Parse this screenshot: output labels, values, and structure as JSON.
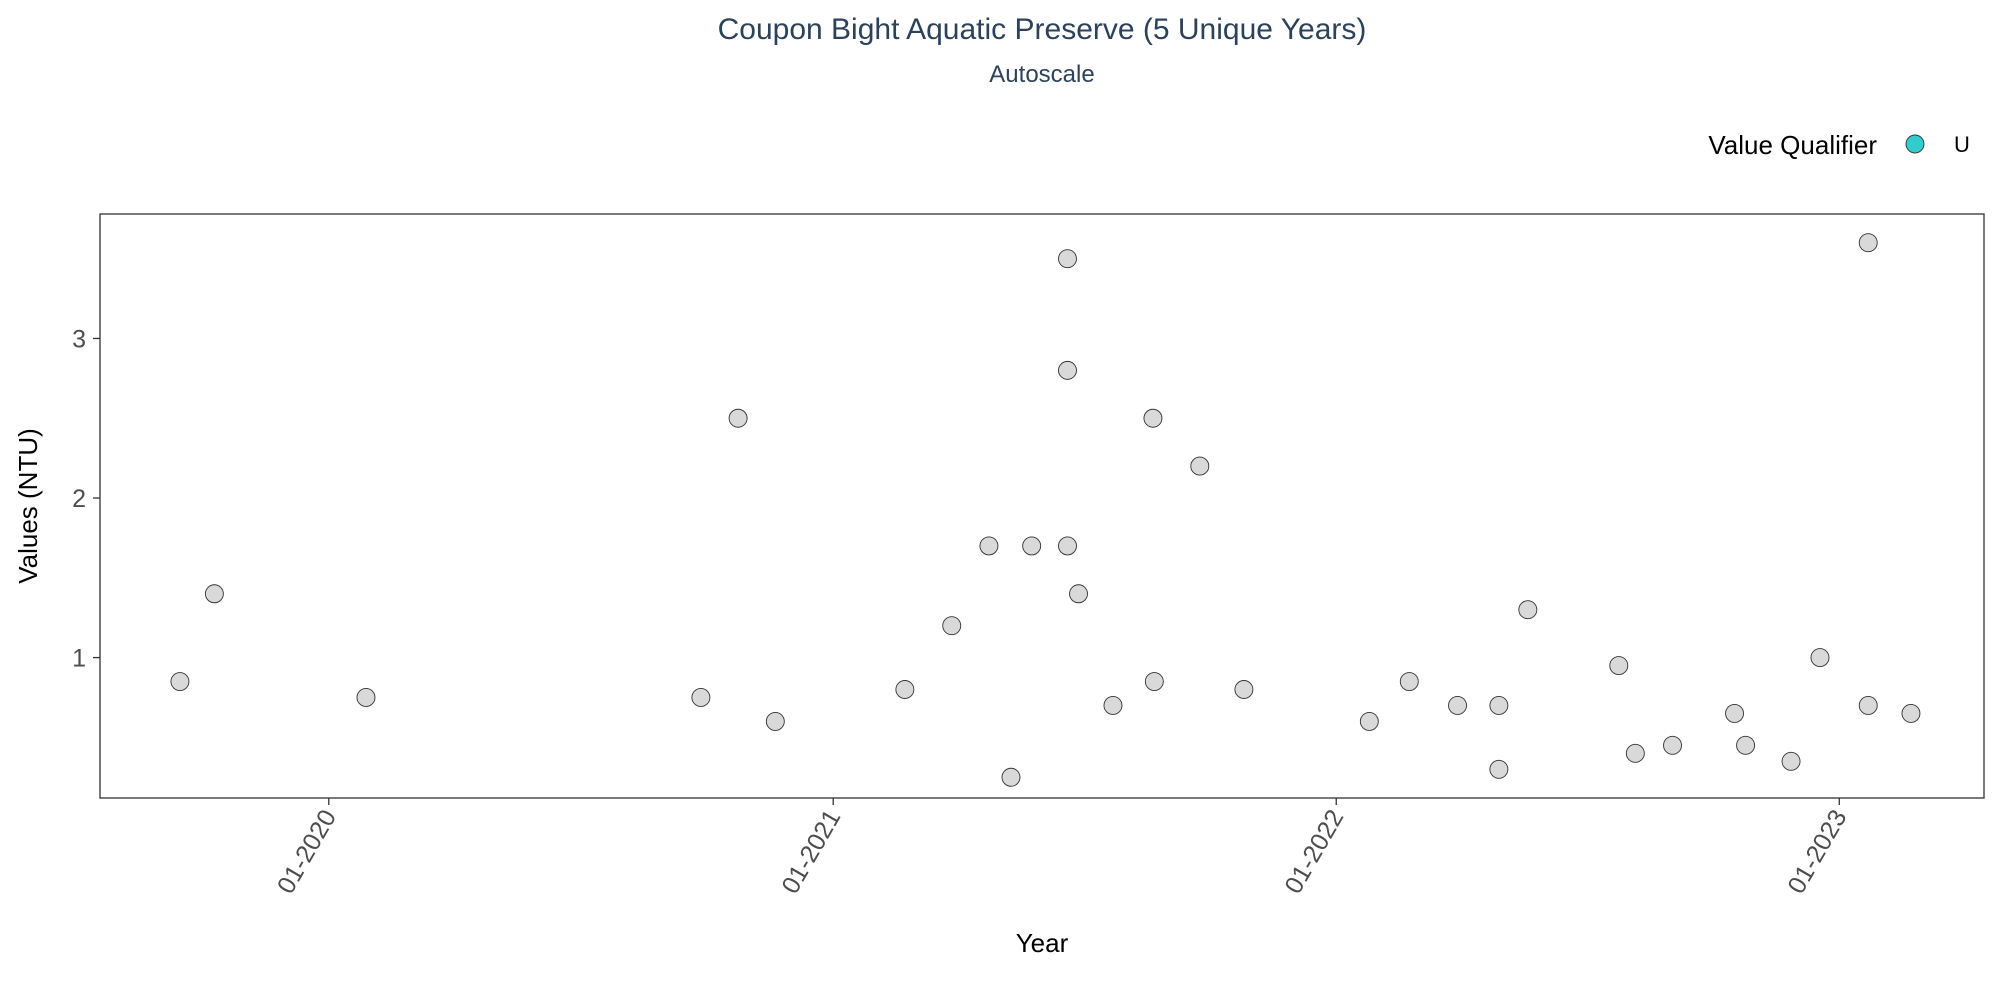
{
  "chart_data": {
    "type": "scatter",
    "title": "Coupon Bight Aquatic Preserve (5 Unique Years)",
    "subtitle": "Autoscale",
    "xlabel": "Year",
    "ylabel": "Values (NTU)",
    "xlim": [
      "2019-07-19",
      "2023-04-16"
    ],
    "ylim": [
      0.12,
      3.78
    ],
    "x_ticks": [
      {
        "date": "2020-01-01",
        "label": "01-2020"
      },
      {
        "date": "2021-01-01",
        "label": "01-2021"
      },
      {
        "date": "2022-01-01",
        "label": "01-2022"
      },
      {
        "date": "2023-01-01",
        "label": "01-2023"
      }
    ],
    "y_ticks": [
      {
        "value": 1,
        "label": "1"
      },
      {
        "value": 2,
        "label": "2"
      },
      {
        "value": 3,
        "label": "3"
      }
    ],
    "grid": false,
    "legend": {
      "title": "Value Qualifier",
      "position": "top-right",
      "entries": [
        {
          "label": "U",
          "color": "#33cccc"
        }
      ]
    },
    "point_color": "#d9d9d9",
    "point_stroke": "#333333",
    "points": [
      {
        "x": "2019-09-15",
        "y": 0.85
      },
      {
        "x": "2019-10-10",
        "y": 1.4
      },
      {
        "x": "2020-01-28",
        "y": 0.75
      },
      {
        "x": "2020-09-27",
        "y": 0.75
      },
      {
        "x": "2020-10-24",
        "y": 2.5
      },
      {
        "x": "2020-11-20",
        "y": 0.6
      },
      {
        "x": "2021-02-22",
        "y": 0.8
      },
      {
        "x": "2021-03-28",
        "y": 1.2
      },
      {
        "x": "2021-04-24",
        "y": 1.7
      },
      {
        "x": "2021-05-10",
        "y": 0.25
      },
      {
        "x": "2021-05-25",
        "y": 1.7
      },
      {
        "x": "2021-06-20",
        "y": 3.5
      },
      {
        "x": "2021-06-20",
        "y": 2.8
      },
      {
        "x": "2021-06-20",
        "y": 1.7
      },
      {
        "x": "2021-06-28",
        "y": 1.4
      },
      {
        "x": "2021-07-23",
        "y": 0.7
      },
      {
        "x": "2021-08-21",
        "y": 2.5
      },
      {
        "x": "2021-08-22",
        "y": 0.85
      },
      {
        "x": "2021-09-24",
        "y": 2.2
      },
      {
        "x": "2021-10-26",
        "y": 0.8
      },
      {
        "x": "2022-01-25",
        "y": 0.6
      },
      {
        "x": "2022-02-23",
        "y": 0.85
      },
      {
        "x": "2022-03-30",
        "y": 0.7
      },
      {
        "x": "2022-04-29",
        "y": 0.7
      },
      {
        "x": "2022-04-29",
        "y": 0.3
      },
      {
        "x": "2022-05-20",
        "y": 1.3
      },
      {
        "x": "2022-07-25",
        "y": 0.95
      },
      {
        "x": "2022-08-06",
        "y": 0.4
      },
      {
        "x": "2022-09-02",
        "y": 0.45
      },
      {
        "x": "2022-10-17",
        "y": 0.65
      },
      {
        "x": "2022-10-25",
        "y": 0.45
      },
      {
        "x": "2022-11-27",
        "y": 0.35
      },
      {
        "x": "2022-12-18",
        "y": 1.0
      },
      {
        "x": "2023-01-22",
        "y": 3.6
      },
      {
        "x": "2023-01-22",
        "y": 0.7
      },
      {
        "x": "2023-02-22",
        "y": 0.65
      }
    ]
  }
}
